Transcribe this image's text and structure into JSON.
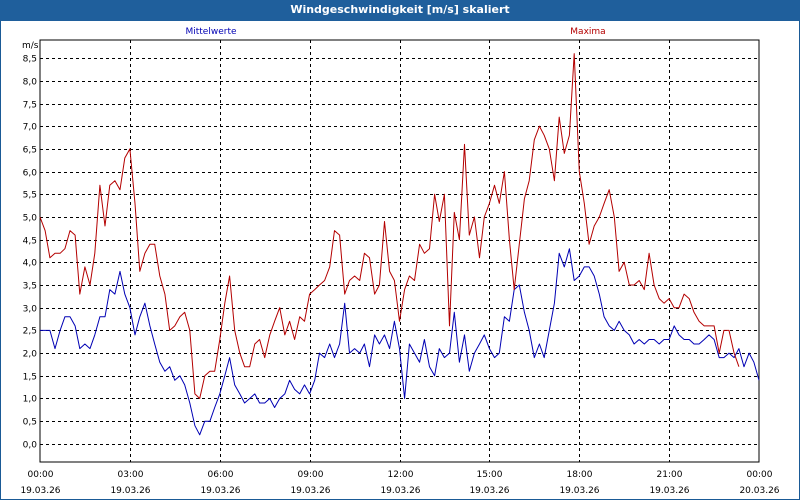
{
  "window": {
    "title": "Windgeschwindigkeit [m/s] skaliert"
  },
  "chart_data": {
    "type": "line",
    "title": "Windgeschwindigkeit [m/s] skaliert",
    "ylabel": "m/s",
    "xlabel": "",
    "ylim": [
      -0.4,
      8.9
    ],
    "xlim": [
      0,
      24
    ],
    "y_ticks": [
      "0,0",
      "0,5",
      "1,0",
      "1,5",
      "2,0",
      "2,5",
      "3,0",
      "3,5",
      "4,0",
      "4,5",
      "5,0",
      "5,5",
      "6,0",
      "6,5",
      "7,0",
      "7,5",
      "8,0",
      "8,5"
    ],
    "y_tick_values": [
      0,
      0.5,
      1,
      1.5,
      2,
      2.5,
      3,
      3.5,
      4,
      4.5,
      5,
      5.5,
      6,
      6.5,
      7,
      7.5,
      8,
      8.5
    ],
    "x_ticks": [
      {
        "time": "00:00",
        "date": "19.03.26",
        "hour": 0
      },
      {
        "time": "03:00",
        "date": "19.03.26",
        "hour": 3
      },
      {
        "time": "06:00",
        "date": "19.03.26",
        "hour": 6
      },
      {
        "time": "09:00",
        "date": "19.03.26",
        "hour": 9
      },
      {
        "time": "12:00",
        "date": "19.03.26",
        "hour": 12
      },
      {
        "time": "15:00",
        "date": "19.03.26",
        "hour": 15
      },
      {
        "time": "18:00",
        "date": "19.03.26",
        "hour": 18
      },
      {
        "time": "21:00",
        "date": "19.03.26",
        "hour": 21
      },
      {
        "time": "00:00",
        "date": "20.03.26",
        "hour": 24
      }
    ],
    "legend": [
      "Mittelwerte",
      "Maxima"
    ],
    "grid": true,
    "series": [
      {
        "name": "Mittelwerte",
        "color": "#0000b4",
        "points": [
          [
            0,
            2.5
          ],
          [
            0.33,
            2.5
          ],
          [
            0.5,
            2.1
          ],
          [
            0.67,
            2.5
          ],
          [
            0.83,
            2.8
          ],
          [
            1,
            2.8
          ],
          [
            1.17,
            2.6
          ],
          [
            1.33,
            2.1
          ],
          [
            1.5,
            2.2
          ],
          [
            1.67,
            2.1
          ],
          [
            1.83,
            2.4
          ],
          [
            2,
            2.8
          ],
          [
            2.17,
            2.8
          ],
          [
            2.33,
            3.4
          ],
          [
            2.5,
            3.3
          ],
          [
            2.67,
            3.8
          ],
          [
            2.83,
            3.3
          ],
          [
            3,
            3.0
          ],
          [
            3.17,
            2.4
          ],
          [
            3.33,
            2.8
          ],
          [
            3.5,
            3.1
          ],
          [
            3.67,
            2.6
          ],
          [
            3.83,
            2.2
          ],
          [
            4,
            1.8
          ],
          [
            4.17,
            1.6
          ],
          [
            4.33,
            1.7
          ],
          [
            4.5,
            1.4
          ],
          [
            4.67,
            1.5
          ],
          [
            4.83,
            1.3
          ],
          [
            5,
            0.9
          ],
          [
            5.17,
            0.4
          ],
          [
            5.33,
            0.2
          ],
          [
            5.5,
            0.5
          ],
          [
            5.67,
            0.5
          ],
          [
            5.83,
            0.8
          ],
          [
            6,
            1.1
          ],
          [
            6.17,
            1.5
          ],
          [
            6.33,
            1.9
          ],
          [
            6.5,
            1.3
          ],
          [
            6.67,
            1.1
          ],
          [
            6.83,
            0.9
          ],
          [
            7,
            1.0
          ],
          [
            7.17,
            1.1
          ],
          [
            7.33,
            0.9
          ],
          [
            7.5,
            0.9
          ],
          [
            7.67,
            1.0
          ],
          [
            7.83,
            0.8
          ],
          [
            8,
            1.0
          ],
          [
            8.17,
            1.1
          ],
          [
            8.33,
            1.4
          ],
          [
            8.5,
            1.2
          ],
          [
            8.67,
            1.1
          ],
          [
            8.83,
            1.3
          ],
          [
            9,
            1.1
          ],
          [
            9.17,
            1.4
          ],
          [
            9.33,
            2.0
          ],
          [
            9.5,
            1.9
          ],
          [
            9.67,
            2.2
          ],
          [
            9.83,
            1.9
          ],
          [
            10,
            2.2
          ],
          [
            10.17,
            3.1
          ],
          [
            10.33,
            2.0
          ],
          [
            10.5,
            2.1
          ],
          [
            10.67,
            2.0
          ],
          [
            10.83,
            2.2
          ],
          [
            11,
            1.7
          ],
          [
            11.17,
            2.4
          ],
          [
            11.33,
            2.2
          ],
          [
            11.5,
            2.4
          ],
          [
            11.67,
            2.1
          ],
          [
            11.83,
            2.7
          ],
          [
            12,
            2.1
          ],
          [
            12.17,
            1.0
          ],
          [
            12.33,
            2.2
          ],
          [
            12.5,
            2.0
          ],
          [
            12.67,
            1.8
          ],
          [
            12.83,
            2.3
          ],
          [
            13,
            1.7
          ],
          [
            13.17,
            1.5
          ],
          [
            13.33,
            2.1
          ],
          [
            13.5,
            1.9
          ],
          [
            13.67,
            2.0
          ],
          [
            13.83,
            2.9
          ],
          [
            14,
            1.8
          ],
          [
            14.17,
            2.4
          ],
          [
            14.33,
            1.6
          ],
          [
            14.5,
            2.0
          ],
          [
            14.67,
            2.2
          ],
          [
            14.83,
            2.4
          ],
          [
            15,
            2.1
          ],
          [
            15.17,
            1.9
          ],
          [
            15.33,
            2.0
          ],
          [
            15.5,
            2.8
          ],
          [
            15.67,
            2.7
          ],
          [
            15.83,
            3.4
          ],
          [
            16,
            3.5
          ],
          [
            16.17,
            2.9
          ],
          [
            16.33,
            2.5
          ],
          [
            16.5,
            1.9
          ],
          [
            16.67,
            2.2
          ],
          [
            16.83,
            1.9
          ],
          [
            17,
            2.5
          ],
          [
            17.17,
            3.1
          ],
          [
            17.33,
            4.2
          ],
          [
            17.5,
            3.9
          ],
          [
            17.67,
            4.3
          ],
          [
            17.83,
            3.6
          ],
          [
            18,
            3.7
          ],
          [
            18.17,
            3.9
          ],
          [
            18.33,
            3.9
          ],
          [
            18.5,
            3.7
          ],
          [
            18.67,
            3.3
          ],
          [
            18.83,
            2.8
          ],
          [
            19,
            2.6
          ],
          [
            19.17,
            2.5
          ],
          [
            19.33,
            2.7
          ],
          [
            19.5,
            2.5
          ],
          [
            19.67,
            2.4
          ],
          [
            19.83,
            2.2
          ],
          [
            20,
            2.3
          ],
          [
            20.17,
            2.2
          ],
          [
            20.33,
            2.3
          ],
          [
            20.5,
            2.3
          ],
          [
            20.67,
            2.2
          ],
          [
            20.83,
            2.3
          ],
          [
            21,
            2.3
          ],
          [
            21.17,
            2.6
          ],
          [
            21.33,
            2.4
          ],
          [
            21.5,
            2.3
          ],
          [
            21.67,
            2.3
          ],
          [
            21.83,
            2.2
          ],
          [
            22,
            2.2
          ],
          [
            22.17,
            2.3
          ],
          [
            22.33,
            2.4
          ],
          [
            22.5,
            2.3
          ],
          [
            22.67,
            1.9
          ],
          [
            22.83,
            1.9
          ],
          [
            23,
            2.0
          ],
          [
            23.17,
            1.9
          ],
          [
            23.33,
            2.1
          ],
          [
            23.5,
            1.7
          ],
          [
            23.67,
            2.0
          ],
          [
            23.83,
            1.8
          ],
          [
            24,
            1.4
          ]
        ]
      },
      {
        "name": "Maxima",
        "color": "#b40000",
        "points": [
          [
            0,
            5.0
          ],
          [
            0.17,
            4.7
          ],
          [
            0.33,
            4.1
          ],
          [
            0.5,
            4.2
          ],
          [
            0.67,
            4.2
          ],
          [
            0.83,
            4.3
          ],
          [
            1,
            4.7
          ],
          [
            1.17,
            4.6
          ],
          [
            1.33,
            3.3
          ],
          [
            1.5,
            3.9
          ],
          [
            1.67,
            3.5
          ],
          [
            1.83,
            4.2
          ],
          [
            2,
            5.7
          ],
          [
            2.17,
            4.8
          ],
          [
            2.33,
            5.7
          ],
          [
            2.5,
            5.8
          ],
          [
            2.67,
            5.6
          ],
          [
            2.83,
            6.3
          ],
          [
            3,
            6.5
          ],
          [
            3.17,
            5.3
          ],
          [
            3.33,
            3.8
          ],
          [
            3.5,
            4.2
          ],
          [
            3.67,
            4.4
          ],
          [
            3.83,
            4.4
          ],
          [
            4,
            3.7
          ],
          [
            4.17,
            3.3
          ],
          [
            4.33,
            2.5
          ],
          [
            4.5,
            2.6
          ],
          [
            4.67,
            2.8
          ],
          [
            4.83,
            2.9
          ],
          [
            5,
            2.5
          ],
          [
            5.17,
            1.1
          ],
          [
            5.33,
            1.0
          ],
          [
            5.5,
            1.5
          ],
          [
            5.67,
            1.6
          ],
          [
            5.83,
            1.6
          ],
          [
            6,
            2.3
          ],
          [
            6.17,
            3.1
          ],
          [
            6.33,
            3.7
          ],
          [
            6.5,
            2.5
          ],
          [
            6.67,
            2.0
          ],
          [
            6.83,
            1.7
          ],
          [
            7,
            1.7
          ],
          [
            7.17,
            2.2
          ],
          [
            7.33,
            2.3
          ],
          [
            7.5,
            1.9
          ],
          [
            7.67,
            2.4
          ],
          [
            7.83,
            2.7
          ],
          [
            8,
            3.0
          ],
          [
            8.17,
            2.4
          ],
          [
            8.33,
            2.7
          ],
          [
            8.5,
            2.3
          ],
          [
            8.67,
            2.8
          ],
          [
            8.83,
            2.7
          ],
          [
            9,
            3.3
          ],
          [
            9.17,
            3.4
          ],
          [
            9.33,
            3.5
          ],
          [
            9.5,
            3.6
          ],
          [
            9.67,
            3.9
          ],
          [
            9.83,
            4.7
          ],
          [
            10,
            4.6
          ],
          [
            10.17,
            3.3
          ],
          [
            10.33,
            3.6
          ],
          [
            10.5,
            3.7
          ],
          [
            10.67,
            3.6
          ],
          [
            10.83,
            4.2
          ],
          [
            11,
            4.1
          ],
          [
            11.17,
            3.3
          ],
          [
            11.33,
            3.5
          ],
          [
            11.5,
            4.9
          ],
          [
            11.67,
            3.8
          ],
          [
            11.83,
            3.6
          ],
          [
            12,
            2.7
          ],
          [
            12.17,
            3.4
          ],
          [
            12.33,
            3.7
          ],
          [
            12.5,
            3.6
          ],
          [
            12.67,
            4.4
          ],
          [
            12.83,
            4.2
          ],
          [
            13,
            4.3
          ],
          [
            13.17,
            5.5
          ],
          [
            13.33,
            4.9
          ],
          [
            13.5,
            5.5
          ],
          [
            13.67,
            2.6
          ],
          [
            13.83,
            5.1
          ],
          [
            14,
            4.5
          ],
          [
            14.17,
            6.6
          ],
          [
            14.33,
            4.6
          ],
          [
            14.5,
            5.0
          ],
          [
            14.67,
            4.1
          ],
          [
            14.83,
            5.0
          ],
          [
            15,
            5.3
          ],
          [
            15.17,
            5.7
          ],
          [
            15.33,
            5.3
          ],
          [
            15.5,
            6.0
          ],
          [
            15.67,
            4.5
          ],
          [
            15.83,
            3.4
          ],
          [
            16,
            4.4
          ],
          [
            16.17,
            5.4
          ],
          [
            16.33,
            5.8
          ],
          [
            16.5,
            6.7
          ],
          [
            16.67,
            7.0
          ],
          [
            16.83,
            6.8
          ],
          [
            17,
            6.5
          ],
          [
            17.17,
            5.8
          ],
          [
            17.33,
            7.2
          ],
          [
            17.5,
            6.4
          ],
          [
            17.67,
            6.8
          ],
          [
            17.83,
            8.6
          ],
          [
            18,
            6.0
          ],
          [
            18.17,
            5.3
          ],
          [
            18.33,
            4.4
          ],
          [
            18.5,
            4.8
          ],
          [
            18.67,
            5.0
          ],
          [
            18.83,
            5.3
          ],
          [
            19,
            5.6
          ],
          [
            19.17,
            5.0
          ],
          [
            19.33,
            3.8
          ],
          [
            19.5,
            4.0
          ],
          [
            19.67,
            3.5
          ],
          [
            19.83,
            3.5
          ],
          [
            20,
            3.6
          ],
          [
            20.17,
            3.4
          ],
          [
            20.33,
            4.2
          ],
          [
            20.5,
            3.5
          ],
          [
            20.67,
            3.2
          ],
          [
            20.83,
            3.1
          ],
          [
            21,
            3.2
          ],
          [
            21.17,
            3.0
          ],
          [
            21.33,
            3.0
          ],
          [
            21.5,
            3.3
          ],
          [
            21.67,
            3.2
          ],
          [
            21.83,
            2.9
          ],
          [
            22,
            2.7
          ],
          [
            22.17,
            2.6
          ],
          [
            22.33,
            2.6
          ],
          [
            22.5,
            2.6
          ],
          [
            22.67,
            2.0
          ],
          [
            22.83,
            2.5
          ],
          [
            23,
            2.5
          ],
          [
            23.17,
            2.0
          ],
          [
            23.33,
            1.7
          ]
        ]
      }
    ]
  }
}
